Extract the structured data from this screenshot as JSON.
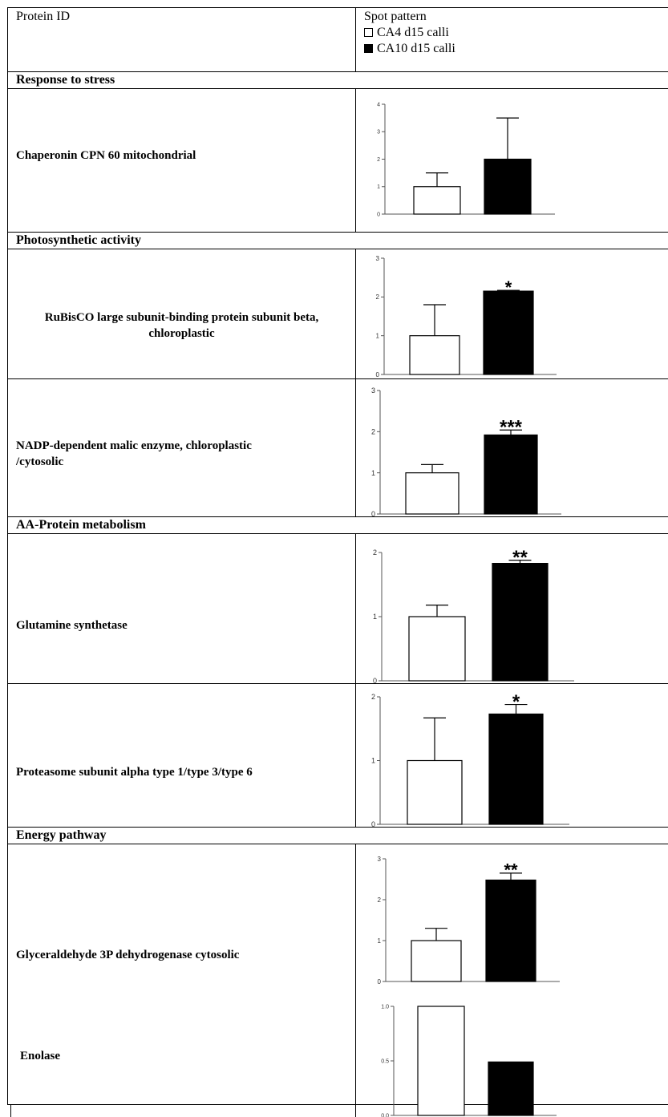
{
  "header": {
    "col1": "Protein ID",
    "col2": "Spot pattern",
    "legend": [
      {
        "label": "CA4 d15 calli",
        "color": "#ffffff"
      },
      {
        "label": "CA10 d15 calli",
        "color": "#000000"
      }
    ]
  },
  "sections": {
    "stress": "Response to stress",
    "photo": "Photosynthetic activity",
    "aa": "AA-Protein metabolism",
    "energy": "Energy pathway"
  },
  "proteins": {
    "chaperonin": "Chaperonin CPN 60 mitochondrial",
    "rubisco": "RuBisCO large subunit-binding protein subunit beta, chloroplastic",
    "nadp_line1": "NADP-dependent malic enzyme, chloroplastic",
    "nadp_line2": "/cytosolic",
    "glutamine": "Glutamine synthetase",
    "proteasome": "Proteasome subunit alpha type 1/type 3/type 6",
    "gapdh": "Glyceraldehyde 3P dehydrogenase cytosolic",
    "enolase": "Enolase"
  },
  "chart_data": [
    {
      "id": "chaperonin",
      "type": "bar",
      "categories": [
        "CA4 d15 calli",
        "CA10 d15 calli"
      ],
      "values": [
        1.0,
        2.0
      ],
      "errors": [
        0.5,
        1.5
      ],
      "ylim": [
        0,
        4
      ],
      "ticks": [
        "0",
        "1",
        "2",
        "3",
        "4"
      ],
      "significance": ""
    },
    {
      "id": "rubisco",
      "type": "bar",
      "categories": [
        "CA4 d15 calli",
        "CA10 d15 calli"
      ],
      "values": [
        1.0,
        2.15
      ],
      "errors": [
        0.8,
        0.02
      ],
      "ylim": [
        0,
        3
      ],
      "ticks": [
        "0",
        "1",
        "2",
        "3"
      ],
      "significance": "*"
    },
    {
      "id": "nadp",
      "type": "bar",
      "categories": [
        "CA4 d15 calli",
        "CA10 d15 calli"
      ],
      "values": [
        1.0,
        1.92
      ],
      "errors": [
        0.2,
        0.12
      ],
      "ylim": [
        0,
        3
      ],
      "ticks": [
        "0",
        "1",
        "2",
        "3"
      ],
      "significance": "***"
    },
    {
      "id": "glutamine",
      "type": "bar",
      "categories": [
        "CA4 d15 calli",
        "CA10 d15 calli"
      ],
      "values": [
        1.0,
        1.83
      ],
      "errors": [
        0.18,
        0.05
      ],
      "ylim": [
        0,
        2
      ],
      "ticks": [
        "0",
        "1",
        "2"
      ],
      "significance": "**"
    },
    {
      "id": "proteasome",
      "type": "bar",
      "categories": [
        "CA4 d15 calli",
        "CA10 d15 calli"
      ],
      "values": [
        1.0,
        1.73
      ],
      "errors": [
        0.67,
        0.15
      ],
      "ylim": [
        0,
        2
      ],
      "ticks": [
        "0",
        "1",
        "2"
      ],
      "significance": "*"
    },
    {
      "id": "gapdh",
      "type": "bar",
      "categories": [
        "CA4 d15 calli",
        "CA10 d15 calli"
      ],
      "values": [
        1.0,
        2.48
      ],
      "errors": [
        0.3,
        0.17
      ],
      "ylim": [
        0,
        3
      ],
      "ticks": [
        "0",
        "1",
        "2",
        "3"
      ],
      "significance": "**"
    },
    {
      "id": "enolase",
      "type": "bar",
      "categories": [
        "CA4 d15 calli",
        "CA10 d15 calli"
      ],
      "values": [
        1.0,
        0.49
      ],
      "errors": [
        0,
        0
      ],
      "ylim": [
        0,
        1.0
      ],
      "ticks": [
        "0.0",
        "0.5",
        "1.0"
      ],
      "significance": ""
    }
  ]
}
